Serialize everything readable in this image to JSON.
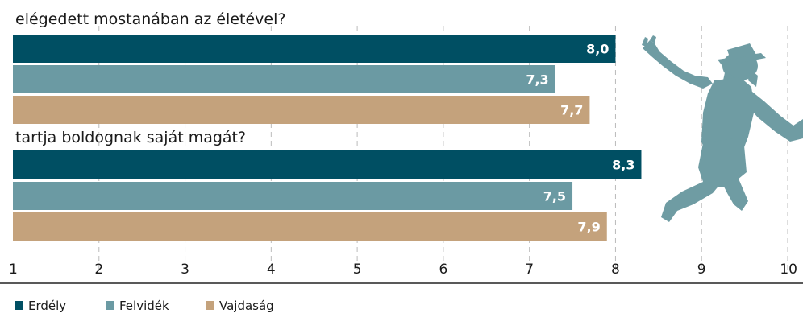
{
  "chart_data": {
    "type": "bar",
    "orientation": "horizontal",
    "xlim": [
      1,
      10
    ],
    "ticks": [
      "1",
      "2",
      "3",
      "4",
      "5",
      "6",
      "7",
      "8",
      "9",
      "10"
    ],
    "grid": "dashed vertical lines",
    "legend_position": "bottom-left",
    "groups": [
      {
        "title": "elégedett mostanában az életével?",
        "values": [
          {
            "series": "Erdély",
            "value": 8.0,
            "label": "8,0"
          },
          {
            "series": "Felvidék",
            "value": 7.3,
            "label": "7,3"
          },
          {
            "series": "Vajdaság",
            "value": 7.7,
            "label": "7,7"
          }
        ]
      },
      {
        "title": "tartja boldognak saját magát?",
        "values": [
          {
            "series": "Erdély",
            "value": 8.3,
            "label": "8,3"
          },
          {
            "series": "Felvidék",
            "value": 7.5,
            "label": "7,5"
          },
          {
            "series": "Vajdaság",
            "value": 7.9,
            "label": "7,9"
          }
        ]
      }
    ],
    "series": [
      {
        "name": "Erdély",
        "color": "#004f63"
      },
      {
        "name": "Felvidék",
        "color": "#6b9aa3"
      },
      {
        "name": "Vajdaság",
        "color": "#c4a27c"
      }
    ]
  },
  "decoration": {
    "icon": "jumping-person-silhouette-icon",
    "color": "#6f9ca3"
  }
}
